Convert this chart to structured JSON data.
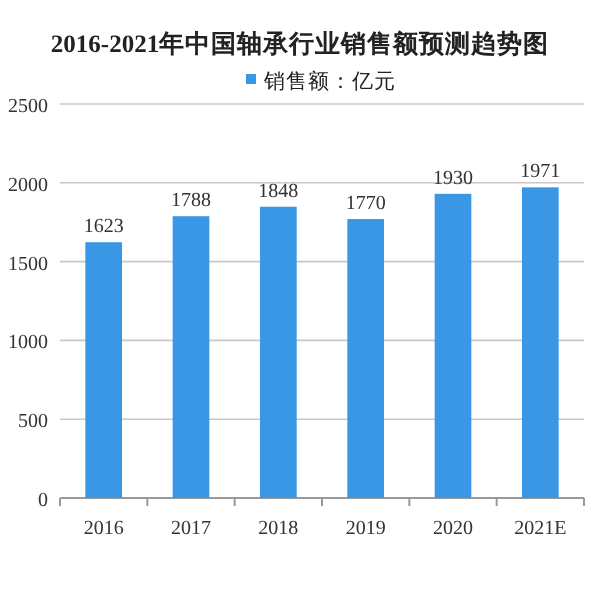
{
  "chart_data": {
    "type": "bar",
    "title": "2016-2021年中国轴承行业销售额预测趋势图",
    "categories": [
      "2016",
      "2017",
      "2018",
      "2019",
      "2020",
      "2021E"
    ],
    "series": [
      {
        "name": "销售额：亿元",
        "color": "#3a97e6",
        "values": [
          1623,
          1788,
          1848,
          1770,
          1930,
          1971
        ]
      }
    ],
    "ylim": [
      0,
      2500
    ],
    "yticks": [
      0,
      500,
      1000,
      1500,
      2000,
      2500
    ],
    "grid": "y",
    "legend": "top",
    "data_labels": true
  }
}
